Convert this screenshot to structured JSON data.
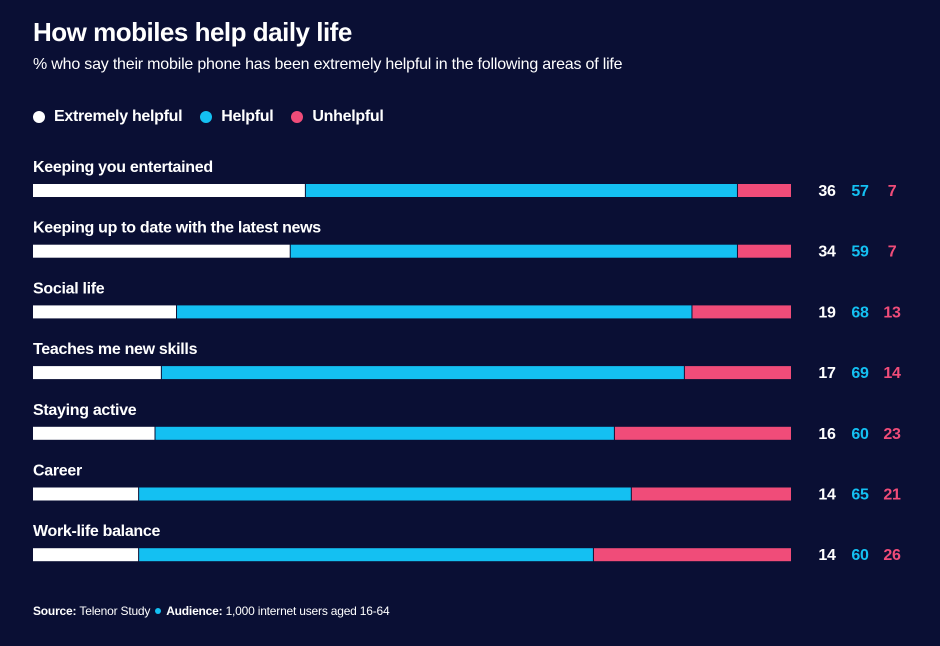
{
  "chart_data": {
    "type": "bar",
    "stacked": true,
    "orientation": "horizontal",
    "title": "How mobiles help daily life",
    "subtitle": "% who say their mobile phone has been extremely helpful in the following areas of life",
    "categories": [
      "Keeping you entertained",
      "Keeping up to date with the latest news",
      "Social life",
      "Teaches me new skills",
      "Staying active",
      "Career",
      "Work-life balance"
    ],
    "series": [
      {
        "name": "Extremely helpful",
        "color": "#ffffff",
        "values": [
          36,
          34,
          19,
          17,
          16,
          14,
          14
        ]
      },
      {
        "name": "Helpful",
        "color": "#14c0f2",
        "values": [
          57,
          59,
          68,
          69,
          60,
          65,
          60
        ]
      },
      {
        "name": "Unhelpful",
        "color": "#f04c79",
        "values": [
          7,
          7,
          13,
          14,
          23,
          21,
          26
        ]
      }
    ],
    "legend": "top-left",
    "grid": false
  },
  "footer": {
    "source_label": "Source:",
    "source_value": "Telenor Study",
    "audience_label": "Audience:",
    "audience_value": "1,000 internet users aged 16-64"
  }
}
